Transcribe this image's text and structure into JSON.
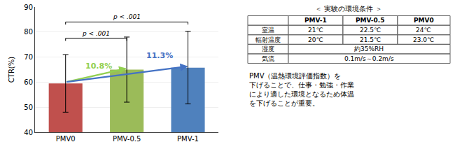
{
  "chart_data": {
    "type": "bar",
    "categories": [
      "PMV0",
      "PMV-0.5",
      "PMV-1"
    ],
    "values": [
      59.5,
      65.0,
      65.8
    ],
    "errors": [
      11.5,
      13.0,
      14.5
    ],
    "colors": [
      "#c0504d",
      "#9bbb59",
      "#4f81bd"
    ],
    "ylabel": "CTR(%)",
    "ylim": [
      40,
      90
    ],
    "yticks": [
      40,
      50,
      60,
      70,
      80,
      90
    ],
    "grid": true,
    "annotations": [
      {
        "text": "10.8%",
        "color": "#92d050",
        "from": "PMV0",
        "to": "PMV-0.5"
      },
      {
        "text": "11.3%",
        "color": "#4472c4",
        "from": "PMV0",
        "to": "PMV-1"
      }
    ],
    "significance": [
      {
        "text": "p < .001",
        "from": "PMV0",
        "to": "PMV-0.5"
      },
      {
        "text": "p < .001",
        "from": "PMV0",
        "to": "PMV-1"
      }
    ],
    "table": {
      "title": "＜ 実験の環境条件 ＞",
      "headers": [
        null,
        "PMV-1",
        "PMV-0.5",
        "PMV0"
      ],
      "rows": [
        [
          "室温",
          "21℃",
          "22.5℃",
          "24℃"
        ],
        [
          "輻射温度",
          "20℃",
          "21.5℃",
          "23.0℃"
        ],
        [
          "湿度",
          "約35%RH"
        ],
        [
          "気流",
          "0.1m/s～0.2m/s"
        ]
      ]
    },
    "body_text": "PMV（温熱環境評価指数）を\n下げることで、仕事・勉強・作業\nにより適した環境となるため体温\nを下げることが重要。"
  }
}
